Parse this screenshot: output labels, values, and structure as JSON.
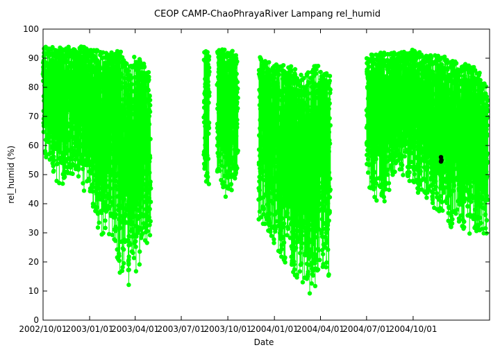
{
  "chart_data": {
    "type": "scatter",
    "title": "CEOP CAMP-ChaoPhrayaRiver Lampang  rel_humid",
    "xlabel": "Date",
    "ylabel": "rel_humid (%)",
    "ylim": [
      0,
      100
    ],
    "xlim": [
      "2002-10-01",
      "2005-03-01"
    ],
    "grid": false,
    "legend": "none",
    "x_ticks": [
      "2002/10/01",
      "2003/01/01",
      "2003/04/01",
      "2003/07/01",
      "2003/10/01",
      "2004/01/01",
      "2004/04/01",
      "2004/07/01",
      "2004/10/01"
    ],
    "y_ticks": [
      "0",
      "10",
      "20",
      "30",
      "40",
      "50",
      "60",
      "70",
      "80",
      "90",
      "100"
    ],
    "colors": {
      "main": "#00ff00",
      "outlier": "#000000"
    },
    "series": [
      {
        "color": "#00ff00",
        "envelope": [
          {
            "date": "2002-10-01",
            "min": 57,
            "max": 94
          },
          {
            "date": "2002-11-01",
            "min": 45,
            "max": 94
          },
          {
            "date": "2002-12-01",
            "min": 50,
            "max": 94
          },
          {
            "date": "2003-01-01",
            "min": 40,
            "max": 94
          },
          {
            "date": "2003-01-20",
            "min": 30,
            "max": 93
          },
          {
            "date": "2003-02-10",
            "min": 27,
            "max": 92
          },
          {
            "date": "2003-03-01",
            "min": 14,
            "max": 93
          },
          {
            "date": "2003-03-20",
            "min": 11,
            "max": 88
          },
          {
            "date": "2003-04-01",
            "min": 15,
            "max": 91
          },
          {
            "date": "2003-04-20",
            "min": 22,
            "max": 88
          },
          {
            "date": "2003-05-01",
            "min": 26,
            "max": 85
          },
          {
            "date": "2003-08-15",
            "min": 46,
            "max": 93
          },
          {
            "date": "2003-08-25",
            "min": 46,
            "max": 92
          },
          {
            "date": "2003-09-10",
            "min": 50,
            "max": 93
          },
          {
            "date": "2003-10-01",
            "min": 40,
            "max": 93
          },
          {
            "date": "2003-10-20",
            "min": 47,
            "max": 92
          },
          {
            "date": "2003-12-01",
            "min": 33,
            "max": 91
          },
          {
            "date": "2004-01-01",
            "min": 25,
            "max": 88
          },
          {
            "date": "2004-02-01",
            "min": 15,
            "max": 88
          },
          {
            "date": "2004-03-01",
            "min": 8,
            "max": 84
          },
          {
            "date": "2004-03-20",
            "min": 10,
            "max": 90
          },
          {
            "date": "2004-04-01",
            "min": 14,
            "max": 86
          },
          {
            "date": "2004-04-20",
            "min": 14,
            "max": 85
          },
          {
            "date": "2004-07-01",
            "min": 45,
            "max": 91
          },
          {
            "date": "2004-08-01",
            "min": 38,
            "max": 92
          },
          {
            "date": "2004-09-01",
            "min": 52,
            "max": 92
          },
          {
            "date": "2004-10-01",
            "min": 45,
            "max": 93
          },
          {
            "date": "2004-11-01",
            "min": 40,
            "max": 91
          },
          {
            "date": "2004-12-01",
            "min": 33,
            "max": 91
          },
          {
            "date": "2005-01-01",
            "min": 30,
            "max": 88
          },
          {
            "date": "2005-02-01",
            "min": 28,
            "max": 88
          },
          {
            "date": "2005-02-25",
            "min": 30,
            "max": 80
          }
        ],
        "segments": [
          [
            "2002-10-01",
            "2003-05-01"
          ],
          [
            "2003-08-15",
            "2003-08-25"
          ],
          [
            "2003-09-10",
            "2003-10-20"
          ],
          [
            "2003-12-01",
            "2004-04-20"
          ],
          [
            "2004-07-01",
            "2005-02-25"
          ]
        ]
      },
      {
        "color": "#000000",
        "points": [
          {
            "date": "2004-11-25",
            "value": 56
          },
          {
            "date": "2004-11-25",
            "value": 54.5
          },
          {
            "date": "2004-11-26",
            "value": 55
          }
        ]
      }
    ]
  }
}
